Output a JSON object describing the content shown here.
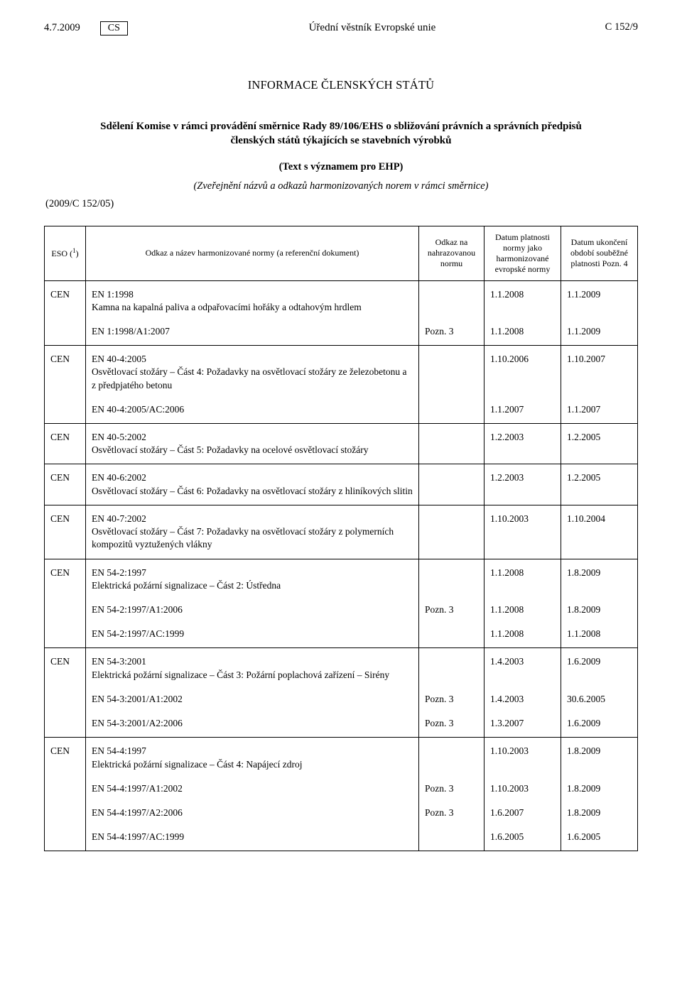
{
  "header": {
    "date": "4.7.2009",
    "lang": "CS",
    "journal": "Úřední věstník Evropské unie",
    "page_ref": "C 152/9"
  },
  "section_heading": "INFORMACE ČLENSKÝCH STÁTŮ",
  "doc_title": "Sdělení Komise v rámci provádění směrnice Rady 89/106/EHS o sbližování právních a správních předpisů členských států týkajících se stavebních výrobků",
  "doc_subtitle": "(Text s významem pro EHP)",
  "doc_paren": "(Zveřejnění názvů a odkazů harmonizovaných norem v rámci směrnice)",
  "doc_ref": "(2009/C 152/05)",
  "table": {
    "columns": {
      "eso_pre": "ESO (",
      "eso_sup": "1",
      "eso_post": ")",
      "title": "Odkaz a název harmonizované normy (a referenční dokument)",
      "ref": "Odkaz na nahrazovanou normu",
      "d1": "Datum platnosti normy jako harmonizované evropské normy",
      "d2": "Datum ukončení období souběžné platnosti Pozn. 4"
    }
  },
  "rows": [
    {
      "group_start": true,
      "eso": "CEN",
      "code": "EN 1:1998",
      "desc": "Kamna na kapalná paliva a odpařovacími hořáky a odtahovým hrdlem",
      "ref": "",
      "d1": "1.1.2008",
      "d2": "1.1.2009"
    },
    {
      "group_end": true,
      "eso": "",
      "code": "EN 1:1998/A1:2007",
      "desc": "",
      "ref": "Pozn. 3",
      "d1": "1.1.2008",
      "d2": "1.1.2009"
    },
    {
      "group_start": true,
      "eso": "CEN",
      "code": "EN 40-4:2005",
      "desc": "Osvětlovací stožáry – Část 4: Požadavky na osvětlovací stožáry ze železobetonu a z předpjatého betonu",
      "ref": "",
      "d1": "1.10.2006",
      "d2": "1.10.2007"
    },
    {
      "group_end": true,
      "eso": "",
      "code": "EN 40-4:2005/AC:2006",
      "desc": "",
      "ref": "",
      "d1": "1.1.2007",
      "d2": "1.1.2007"
    },
    {
      "group_start": true,
      "group_end": true,
      "eso": "CEN",
      "code": "EN 40-5:2002",
      "desc": "Osvětlovací stožáry – Část 5: Požadavky na ocelové osvětlovací stožáry",
      "ref": "",
      "d1": "1.2.2003",
      "d2": "1.2.2005"
    },
    {
      "group_start": true,
      "group_end": true,
      "eso": "CEN",
      "code": "EN 40-6:2002",
      "desc": "Osvětlovací stožáry – Část 6: Požadavky na osvětlovací stožáry z hliníkových slitin",
      "ref": "",
      "d1": "1.2.2003",
      "d2": "1.2.2005"
    },
    {
      "group_start": true,
      "group_end": true,
      "eso": "CEN",
      "code": "EN 40-7:2002",
      "desc": "Osvětlovací stožáry – Část 7: Požadavky na osvětlovací stožáry z polymerních kompozitů vyztužených vlákny",
      "ref": "",
      "d1": "1.10.2003",
      "d2": "1.10.2004"
    },
    {
      "group_start": true,
      "eso": "CEN",
      "code": "EN 54-2:1997",
      "desc": "Elektrická požární signalizace – Část 2: Ústředna",
      "ref": "",
      "d1": "1.1.2008",
      "d2": "1.8.2009"
    },
    {
      "eso": "",
      "code": "EN 54-2:1997/A1:2006",
      "desc": "",
      "ref": "Pozn. 3",
      "d1": "1.1.2008",
      "d2": "1.8.2009"
    },
    {
      "group_end": true,
      "eso": "",
      "code": "EN 54-2:1997/AC:1999",
      "desc": "",
      "ref": "",
      "d1": "1.1.2008",
      "d2": "1.1.2008"
    },
    {
      "group_start": true,
      "eso": "CEN",
      "code": "EN 54-3:2001",
      "desc": "Elektrická požární signalizace – Část 3: Požární poplachová zařízení – Sirény",
      "ref": "",
      "d1": "1.4.2003",
      "d2": "1.6.2009"
    },
    {
      "eso": "",
      "code": "EN 54-3:2001/A1:2002",
      "desc": "",
      "ref": "Pozn. 3",
      "d1": "1.4.2003",
      "d2": "30.6.2005"
    },
    {
      "group_end": true,
      "eso": "",
      "code": "EN 54-3:2001/A2:2006",
      "desc": "",
      "ref": "Pozn. 3",
      "d1": "1.3.2007",
      "d2": "1.6.2009"
    },
    {
      "group_start": true,
      "eso": "CEN",
      "code": "EN 54-4:1997",
      "desc": "Elektrická požární signalizace – Část 4: Napájecí zdroj",
      "ref": "",
      "d1": "1.10.2003",
      "d2": "1.8.2009"
    },
    {
      "eso": "",
      "code": "EN 54-4:1997/A1:2002",
      "desc": "",
      "ref": "Pozn. 3",
      "d1": "1.10.2003",
      "d2": "1.8.2009"
    },
    {
      "eso": "",
      "code": "EN 54-4:1997/A2:2006",
      "desc": "",
      "ref": "Pozn. 3",
      "d1": "1.6.2007",
      "d2": "1.8.2009"
    },
    {
      "group_end": true,
      "eso": "",
      "code": "EN 54-4:1997/AC:1999",
      "desc": "",
      "ref": "",
      "d1": "1.6.2005",
      "d2": "1.6.2005"
    }
  ]
}
